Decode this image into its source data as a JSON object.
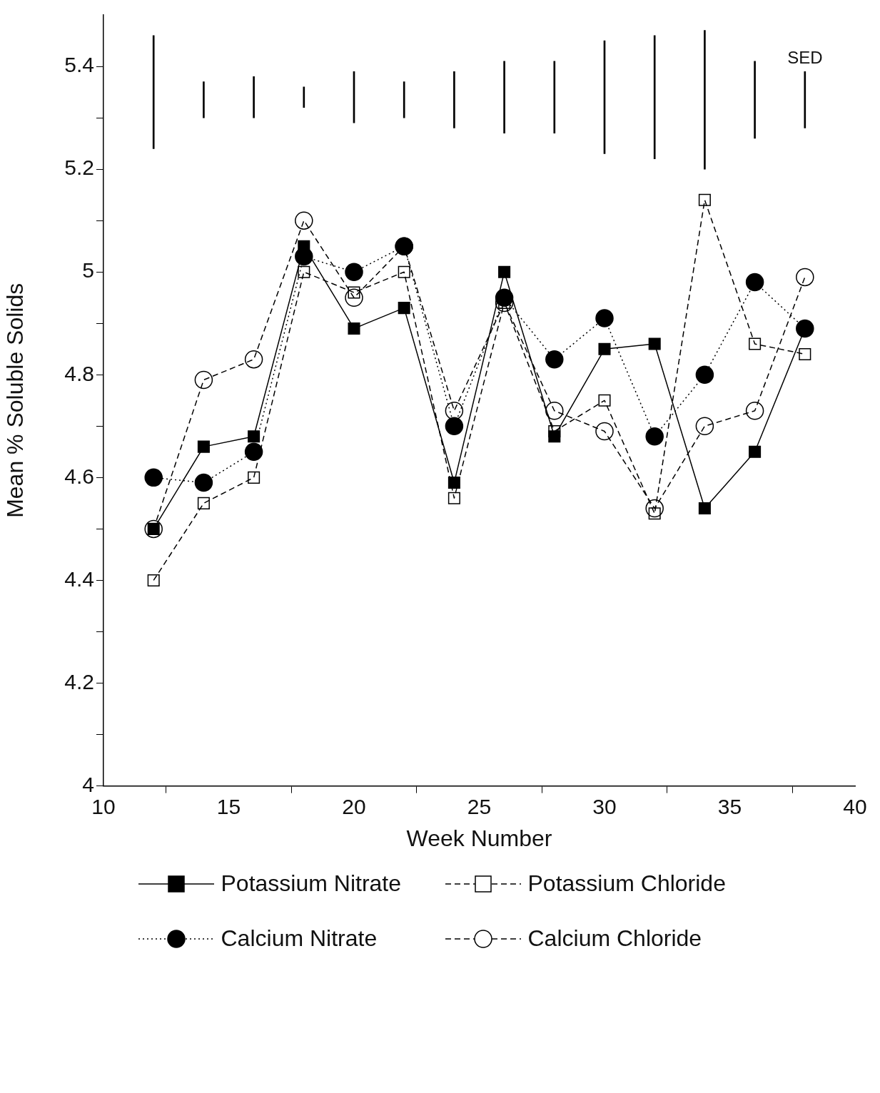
{
  "chart_data": {
    "type": "line",
    "xlabel": "Week Number",
    "ylabel": "Mean % Soluble Solids",
    "x": [
      12,
      14,
      16,
      18,
      20,
      22,
      24,
      26,
      28,
      30,
      32,
      34,
      36,
      38
    ],
    "xlim": [
      10,
      40
    ],
    "xticks": [
      10,
      15,
      20,
      25,
      30,
      35,
      40
    ],
    "ylim": [
      4,
      5.5
    ],
    "yticks": [
      4,
      {
        "value": 4.1,
        "label": null
      },
      4.2,
      {
        "value": 4.3,
        "label": null
      },
      4.4,
      {
        "value": 4.5,
        "label": null
      },
      4.6,
      {
        "value": 4.7,
        "label": null
      },
      4.8,
      {
        "value": 4.9,
        "label": null
      },
      5,
      {
        "value": 5.1,
        "label": null
      },
      5.2,
      {
        "value": 5.3,
        "label": null
      },
      5.4
    ],
    "grid": false,
    "legend": "bottom",
    "series": [
      {
        "name": "Potassium Nitrate",
        "color": "#000000",
        "marker": "square",
        "line_style": "solid",
        "values": [
          4.5,
          4.66,
          4.68,
          5.05,
          4.89,
          4.93,
          4.59,
          5.0,
          4.68,
          4.85,
          4.86,
          4.54,
          4.65,
          4.89
        ]
      },
      {
        "name": "Potassium Chloride",
        "color": "#000000",
        "marker": "square",
        "line_style": "dashed",
        "values": [
          4.4,
          4.55,
          4.6,
          5.0,
          4.96,
          5.0,
          4.56,
          4.94,
          4.69,
          4.75,
          4.53,
          5.14,
          4.86,
          4.84
        ]
      },
      {
        "name": "Calcium Nitrate",
        "color": "#000000",
        "marker": "circle",
        "line_style": "dotted",
        "values": [
          4.6,
          4.59,
          4.65,
          5.03,
          5.0,
          5.05,
          4.7,
          4.95,
          4.83,
          4.91,
          4.68,
          4.8,
          4.98,
          4.89
        ]
      },
      {
        "name": "Calcium Chloride",
        "color": "#000000",
        "marker": "circle",
        "line_style": "dashed",
        "values": [
          4.5,
          4.79,
          4.83,
          5.1,
          4.95,
          5.05,
          4.73,
          4.94,
          4.73,
          4.69,
          4.54,
          4.7,
          4.73,
          4.99
        ]
      },
      {
        "name": "SED",
        "type": "bar",
        "color": "#000000",
        "base": [
          5.24,
          5.3,
          5.3,
          5.32,
          5.29,
          5.3,
          5.28,
          5.27,
          5.27,
          5.23,
          5.22,
          5.2,
          5.26,
          5.28
        ],
        "values": [
          0.22,
          0.07,
          0.08,
          0.04,
          0.1,
          0.07,
          0.11,
          0.14,
          0.14,
          0.22,
          0.24,
          0.27,
          0.15,
          0.11
        ]
      }
    ]
  }
}
